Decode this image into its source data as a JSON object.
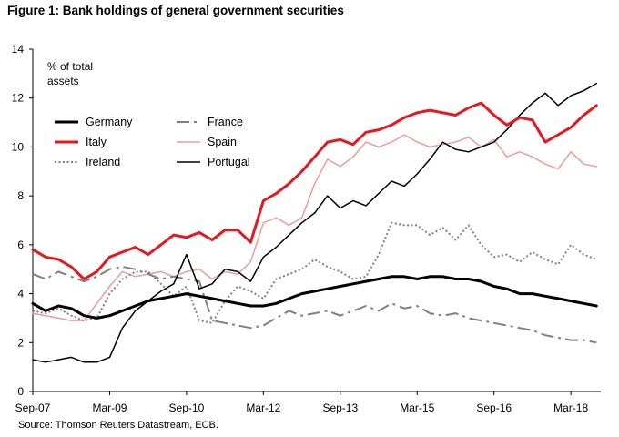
{
  "figure": {
    "title": "Figure 1: Bank holdings of general government securities",
    "source": "Source: Thomson Reuters Datastream, ECB."
  },
  "chart_data": {
    "type": "line",
    "unit_label": [
      "% of total",
      "assets"
    ],
    "ylim": [
      0,
      14
    ],
    "yticks": [
      0,
      2,
      4,
      6,
      8,
      10,
      12,
      14
    ],
    "xlim": [
      "2007-09",
      "2018-10"
    ],
    "xticks": [
      {
        "label": "Sep-07",
        "date": "2007-09"
      },
      {
        "label": "Mar-09",
        "date": "2009-03"
      },
      {
        "label": "Sep-10",
        "date": "2010-09"
      },
      {
        "label": "Mar-12",
        "date": "2012-03"
      },
      {
        "label": "Sep-13",
        "date": "2013-09"
      },
      {
        "label": "Mar-15",
        "date": "2015-03"
      },
      {
        "label": "Sep-16",
        "date": "2016-09"
      },
      {
        "label": "Mar-18",
        "date": "2018-03"
      }
    ],
    "grid": false,
    "legend_position": "top-left",
    "series": [
      {
        "name": "Germany",
        "color": "#000000",
        "style": "solid-thick",
        "points": [
          [
            "2007-09",
            3.6
          ],
          [
            "2007-12",
            3.3
          ],
          [
            "2008-03",
            3.5
          ],
          [
            "2008-06",
            3.4
          ],
          [
            "2008-09",
            3.1
          ],
          [
            "2008-12",
            3.0
          ],
          [
            "2009-03",
            3.1
          ],
          [
            "2009-06",
            3.3
          ],
          [
            "2009-09",
            3.5
          ],
          [
            "2009-12",
            3.7
          ],
          [
            "2010-03",
            3.8
          ],
          [
            "2010-06",
            3.9
          ],
          [
            "2010-09",
            4.0
          ],
          [
            "2010-12",
            3.9
          ],
          [
            "2011-03",
            3.8
          ],
          [
            "2011-06",
            3.7
          ],
          [
            "2011-09",
            3.6
          ],
          [
            "2011-12",
            3.5
          ],
          [
            "2012-03",
            3.5
          ],
          [
            "2012-06",
            3.6
          ],
          [
            "2012-09",
            3.8
          ],
          [
            "2012-12",
            4.0
          ],
          [
            "2013-03",
            4.1
          ],
          [
            "2013-06",
            4.2
          ],
          [
            "2013-09",
            4.3
          ],
          [
            "2013-12",
            4.4
          ],
          [
            "2014-03",
            4.5
          ],
          [
            "2014-06",
            4.6
          ],
          [
            "2014-09",
            4.7
          ],
          [
            "2014-12",
            4.7
          ],
          [
            "2015-03",
            4.6
          ],
          [
            "2015-06",
            4.7
          ],
          [
            "2015-09",
            4.7
          ],
          [
            "2015-12",
            4.6
          ],
          [
            "2016-03",
            4.6
          ],
          [
            "2016-06",
            4.5
          ],
          [
            "2016-09",
            4.3
          ],
          [
            "2016-12",
            4.2
          ],
          [
            "2017-03",
            4.0
          ],
          [
            "2017-06",
            4.0
          ],
          [
            "2017-09",
            3.9
          ],
          [
            "2017-12",
            3.8
          ],
          [
            "2018-03",
            3.7
          ],
          [
            "2018-06",
            3.6
          ],
          [
            "2018-09",
            3.5
          ]
        ]
      },
      {
        "name": "France",
        "color": "#808080",
        "style": "long-dash",
        "points": [
          [
            "2007-09",
            4.8
          ],
          [
            "2007-12",
            4.6
          ],
          [
            "2008-03",
            4.9
          ],
          [
            "2008-06",
            4.7
          ],
          [
            "2008-09",
            4.5
          ],
          [
            "2008-12",
            4.7
          ],
          [
            "2009-03",
            5.0
          ],
          [
            "2009-06",
            5.1
          ],
          [
            "2009-09",
            5.0
          ],
          [
            "2009-12",
            4.8
          ],
          [
            "2010-03",
            4.6
          ],
          [
            "2010-06",
            4.7
          ],
          [
            "2010-09",
            4.6
          ],
          [
            "2010-12",
            4.5
          ],
          [
            "2011-03",
            2.9
          ],
          [
            "2011-06",
            2.8
          ],
          [
            "2011-09",
            2.7
          ],
          [
            "2011-12",
            2.6
          ],
          [
            "2012-03",
            2.7
          ],
          [
            "2012-06",
            3.0
          ],
          [
            "2012-09",
            3.3
          ],
          [
            "2012-12",
            3.1
          ],
          [
            "2013-03",
            3.2
          ],
          [
            "2013-06",
            3.3
          ],
          [
            "2013-09",
            3.1
          ],
          [
            "2013-12",
            3.3
          ],
          [
            "2014-03",
            3.5
          ],
          [
            "2014-06",
            3.3
          ],
          [
            "2014-09",
            3.6
          ],
          [
            "2014-12",
            3.4
          ],
          [
            "2015-03",
            3.5
          ],
          [
            "2015-06",
            3.2
          ],
          [
            "2015-09",
            3.1
          ],
          [
            "2015-12",
            3.2
          ],
          [
            "2016-03",
            3.0
          ],
          [
            "2016-06",
            2.9
          ],
          [
            "2016-09",
            2.8
          ],
          [
            "2016-12",
            2.7
          ],
          [
            "2017-03",
            2.6
          ],
          [
            "2017-06",
            2.5
          ],
          [
            "2017-09",
            2.3
          ],
          [
            "2017-12",
            2.2
          ],
          [
            "2018-03",
            2.1
          ],
          [
            "2018-06",
            2.1
          ],
          [
            "2018-09",
            2.0
          ]
        ]
      },
      {
        "name": "Italy",
        "color": "#e8161d",
        "style": "solid-thick",
        "points": [
          [
            "2007-09",
            5.8
          ],
          [
            "2007-12",
            5.5
          ],
          [
            "2008-03",
            5.4
          ],
          [
            "2008-06",
            5.1
          ],
          [
            "2008-09",
            4.6
          ],
          [
            "2008-12",
            4.9
          ],
          [
            "2009-03",
            5.5
          ],
          [
            "2009-06",
            5.7
          ],
          [
            "2009-09",
            5.9
          ],
          [
            "2009-12",
            5.6
          ],
          [
            "2010-03",
            6.0
          ],
          [
            "2010-06",
            6.4
          ],
          [
            "2010-09",
            6.3
          ],
          [
            "2010-12",
            6.5
          ],
          [
            "2011-03",
            6.2
          ],
          [
            "2011-06",
            6.6
          ],
          [
            "2011-09",
            6.6
          ],
          [
            "2011-12",
            6.1
          ],
          [
            "2012-03",
            7.8
          ],
          [
            "2012-06",
            8.1
          ],
          [
            "2012-09",
            8.5
          ],
          [
            "2012-12",
            9.0
          ],
          [
            "2013-03",
            9.6
          ],
          [
            "2013-06",
            10.2
          ],
          [
            "2013-09",
            10.3
          ],
          [
            "2013-12",
            10.1
          ],
          [
            "2014-03",
            10.6
          ],
          [
            "2014-06",
            10.7
          ],
          [
            "2014-09",
            10.9
          ],
          [
            "2014-12",
            11.2
          ],
          [
            "2015-03",
            11.4
          ],
          [
            "2015-06",
            11.5
          ],
          [
            "2015-09",
            11.4
          ],
          [
            "2015-12",
            11.3
          ],
          [
            "2016-03",
            11.6
          ],
          [
            "2016-06",
            11.8
          ],
          [
            "2016-09",
            11.3
          ],
          [
            "2016-12",
            10.9
          ],
          [
            "2017-03",
            11.2
          ],
          [
            "2017-06",
            11.1
          ],
          [
            "2017-09",
            10.2
          ],
          [
            "2017-12",
            10.5
          ],
          [
            "2018-03",
            10.8
          ],
          [
            "2018-06",
            11.3
          ],
          [
            "2018-09",
            11.7
          ]
        ]
      },
      {
        "name": "Spain",
        "color": "#f29a96",
        "style": "solid-thin",
        "points": [
          [
            "2007-09",
            3.2
          ],
          [
            "2007-12",
            3.1
          ],
          [
            "2008-03",
            3.0
          ],
          [
            "2008-06",
            2.9
          ],
          [
            "2008-09",
            2.9
          ],
          [
            "2008-12",
            3.6
          ],
          [
            "2009-03",
            4.3
          ],
          [
            "2009-06",
            4.9
          ],
          [
            "2009-09",
            4.7
          ],
          [
            "2009-12",
            4.8
          ],
          [
            "2010-03",
            4.9
          ],
          [
            "2010-06",
            4.7
          ],
          [
            "2010-09",
            4.9
          ],
          [
            "2010-12",
            5.0
          ],
          [
            "2011-03",
            4.6
          ],
          [
            "2011-06",
            4.9
          ],
          [
            "2011-09",
            4.8
          ],
          [
            "2011-12",
            5.3
          ],
          [
            "2012-03",
            6.9
          ],
          [
            "2012-06",
            7.1
          ],
          [
            "2012-09",
            6.8
          ],
          [
            "2012-12",
            7.1
          ],
          [
            "2013-03",
            8.5
          ],
          [
            "2013-06",
            9.5
          ],
          [
            "2013-09",
            9.2
          ],
          [
            "2013-12",
            9.6
          ],
          [
            "2014-03",
            10.2
          ],
          [
            "2014-06",
            10.0
          ],
          [
            "2014-09",
            10.2
          ],
          [
            "2014-12",
            10.5
          ],
          [
            "2015-03",
            10.2
          ],
          [
            "2015-06",
            10.0
          ],
          [
            "2015-09",
            10.1
          ],
          [
            "2015-12",
            10.2
          ],
          [
            "2016-03",
            10.4
          ],
          [
            "2016-06",
            10.0
          ],
          [
            "2016-09",
            10.3
          ],
          [
            "2016-12",
            9.6
          ],
          [
            "2017-03",
            9.8
          ],
          [
            "2017-06",
            9.6
          ],
          [
            "2017-09",
            9.3
          ],
          [
            "2017-12",
            9.1
          ],
          [
            "2018-03",
            9.8
          ],
          [
            "2018-06",
            9.3
          ],
          [
            "2018-09",
            9.2
          ]
        ]
      },
      {
        "name": "Ireland",
        "color": "#808080",
        "style": "dotted",
        "points": [
          [
            "2007-09",
            3.3
          ],
          [
            "2007-12",
            3.2
          ],
          [
            "2008-03",
            3.4
          ],
          [
            "2008-06",
            3.1
          ],
          [
            "2008-09",
            2.9
          ],
          [
            "2008-12",
            3.0
          ],
          [
            "2009-03",
            4.0
          ],
          [
            "2009-06",
            4.6
          ],
          [
            "2009-09",
            4.9
          ],
          [
            "2009-12",
            4.9
          ],
          [
            "2010-03",
            4.4
          ],
          [
            "2010-06",
            3.9
          ],
          [
            "2010-09",
            4.3
          ],
          [
            "2010-12",
            2.9
          ],
          [
            "2011-03",
            2.8
          ],
          [
            "2011-06",
            3.7
          ],
          [
            "2011-09",
            4.3
          ],
          [
            "2011-12",
            4.1
          ],
          [
            "2012-03",
            3.8
          ],
          [
            "2012-06",
            4.6
          ],
          [
            "2012-09",
            4.8
          ],
          [
            "2012-12",
            5.0
          ],
          [
            "2013-03",
            5.4
          ],
          [
            "2013-06",
            5.1
          ],
          [
            "2013-09",
            4.9
          ],
          [
            "2013-12",
            4.6
          ],
          [
            "2014-03",
            4.7
          ],
          [
            "2014-06",
            5.6
          ],
          [
            "2014-09",
            6.9
          ],
          [
            "2014-12",
            6.8
          ],
          [
            "2015-03",
            6.8
          ],
          [
            "2015-06",
            6.4
          ],
          [
            "2015-09",
            6.7
          ],
          [
            "2015-12",
            6.2
          ],
          [
            "2016-03",
            6.8
          ],
          [
            "2016-06",
            6.0
          ],
          [
            "2016-09",
            5.5
          ],
          [
            "2016-12",
            5.6
          ],
          [
            "2017-03",
            5.3
          ],
          [
            "2017-06",
            5.7
          ],
          [
            "2017-09",
            5.4
          ],
          [
            "2017-12",
            5.2
          ],
          [
            "2018-03",
            6.0
          ],
          [
            "2018-06",
            5.6
          ],
          [
            "2018-09",
            5.4
          ]
        ]
      },
      {
        "name": "Portugal",
        "color": "#000000",
        "style": "solid-thin",
        "points": [
          [
            "2007-09",
            1.3
          ],
          [
            "2007-12",
            1.2
          ],
          [
            "2008-03",
            1.3
          ],
          [
            "2008-06",
            1.4
          ],
          [
            "2008-09",
            1.2
          ],
          [
            "2008-12",
            1.2
          ],
          [
            "2009-03",
            1.4
          ],
          [
            "2009-06",
            2.6
          ],
          [
            "2009-09",
            3.3
          ],
          [
            "2009-12",
            3.7
          ],
          [
            "2010-03",
            4.1
          ],
          [
            "2010-06",
            4.4
          ],
          [
            "2010-09",
            5.6
          ],
          [
            "2010-12",
            4.2
          ],
          [
            "2011-03",
            4.4
          ],
          [
            "2011-06",
            5.0
          ],
          [
            "2011-09",
            4.9
          ],
          [
            "2011-12",
            4.5
          ],
          [
            "2012-03",
            5.5
          ],
          [
            "2012-06",
            5.9
          ],
          [
            "2012-09",
            6.4
          ],
          [
            "2012-12",
            6.9
          ],
          [
            "2013-03",
            7.3
          ],
          [
            "2013-06",
            8.0
          ],
          [
            "2013-09",
            7.5
          ],
          [
            "2013-12",
            7.8
          ],
          [
            "2014-03",
            7.6
          ],
          [
            "2014-06",
            8.1
          ],
          [
            "2014-09",
            8.6
          ],
          [
            "2014-12",
            8.4
          ],
          [
            "2015-03",
            8.9
          ],
          [
            "2015-06",
            9.5
          ],
          [
            "2015-09",
            10.2
          ],
          [
            "2015-12",
            9.9
          ],
          [
            "2016-03",
            9.8
          ],
          [
            "2016-06",
            10.0
          ],
          [
            "2016-09",
            10.2
          ],
          [
            "2016-12",
            10.7
          ],
          [
            "2017-03",
            11.3
          ],
          [
            "2017-06",
            11.8
          ],
          [
            "2017-09",
            12.2
          ],
          [
            "2017-12",
            11.7
          ],
          [
            "2018-03",
            12.1
          ],
          [
            "2018-06",
            12.3
          ],
          [
            "2018-09",
            12.6
          ]
        ]
      }
    ],
    "legend": [
      {
        "name": "Germany",
        "col": 0,
        "row": 0
      },
      {
        "name": "France",
        "col": 1,
        "row": 0
      },
      {
        "name": "Italy",
        "col": 0,
        "row": 1
      },
      {
        "name": "Spain",
        "col": 1,
        "row": 1
      },
      {
        "name": "Ireland",
        "col": 0,
        "row": 2
      },
      {
        "name": "Portugal",
        "col": 1,
        "row": 2
      }
    ]
  }
}
